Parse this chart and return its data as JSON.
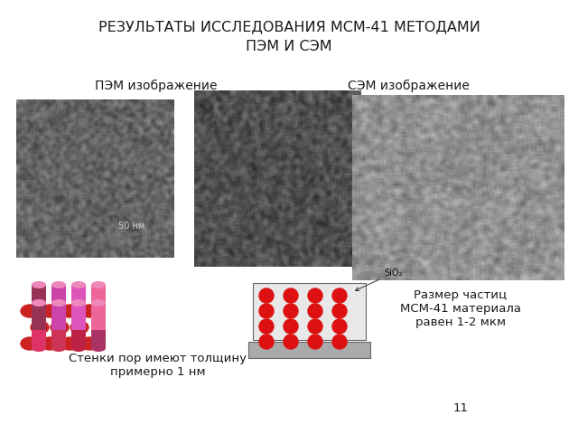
{
  "title_line1": "РЕЗУЛЬТАТЫ ИССЛЕДОВАНИЯ МСМ-41 МЕТОДАМИ",
  "title_line2": "ПЭМ И СЭМ",
  "label_pem": "ПЭМ изображение",
  "label_sem": "СЭМ изображение",
  "text_walls": "Стенки пор имеют толщину\nпримерно 1 нм",
  "text_size": "Размер частиц\nМСМ-41 материала\nравен 1-2 мкм",
  "text_50nm": "50 нм",
  "text_sio2": "SiO₂",
  "slide_number": "11",
  "bg_color": "#ffffff",
  "title_fontsize": 11.5,
  "label_fontsize": 10,
  "body_fontsize": 9.5,
  "small_fontsize": 7,
  "img1_gray": 100,
  "img2_gray": 80,
  "img3_gray": 145
}
